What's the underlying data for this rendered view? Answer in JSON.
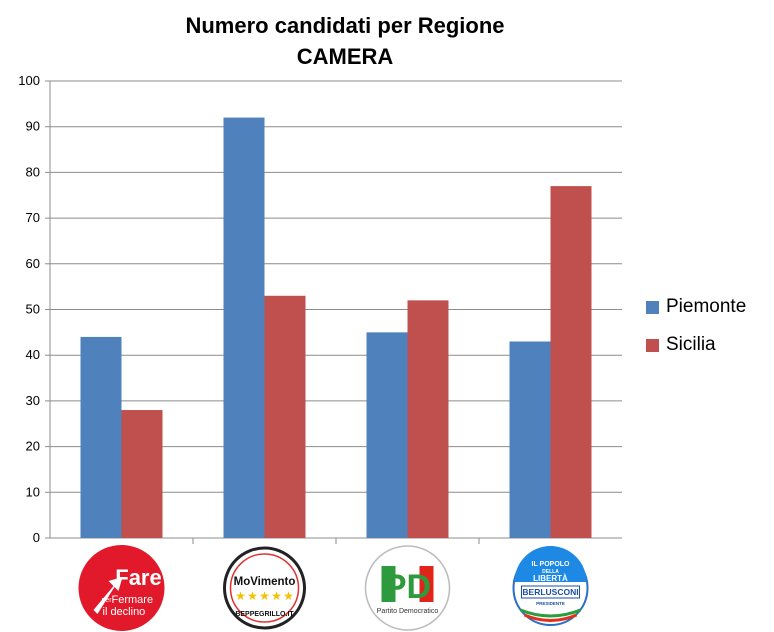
{
  "chart_data": {
    "type": "bar",
    "title": "Numero candidati per Regione",
    "subtitle": "CAMERA",
    "categories": [
      "Fare per Fermare il declino",
      "Movimento 5 Stelle",
      "PD",
      "Il Popolo della Libertà"
    ],
    "series": [
      {
        "name": "Piemonte",
        "values": [
          44,
          92,
          45,
          43
        ],
        "color": "#4F81BD"
      },
      {
        "name": "Sicilia",
        "values": [
          28,
          53,
          52,
          77
        ],
        "color": "#C0504D"
      }
    ],
    "ylim": [
      0,
      100
    ],
    "yticks": [
      "0",
      "10",
      "20",
      "30",
      "40",
      "50",
      "60",
      "70",
      "80",
      "90",
      "100"
    ],
    "grid": true,
    "legend_position": "right",
    "category_logos": [
      {
        "name": "fare-logo",
        "lines": [
          "Fare",
          "per",
          "Fermare",
          "il declino"
        ]
      },
      {
        "name": "movimento-logo",
        "lines": [
          "MoVimento",
          "BEPPEGRILLO.IT"
        ]
      },
      {
        "name": "pd-logo",
        "lines": [
          "PD",
          "Partito Democratico"
        ]
      },
      {
        "name": "pdl-logo",
        "lines": [
          "IL POPOLO",
          "DELLA",
          "LIBERTÀ",
          "BERLUSCONI",
          "PRESIDENTE"
        ]
      }
    ]
  }
}
